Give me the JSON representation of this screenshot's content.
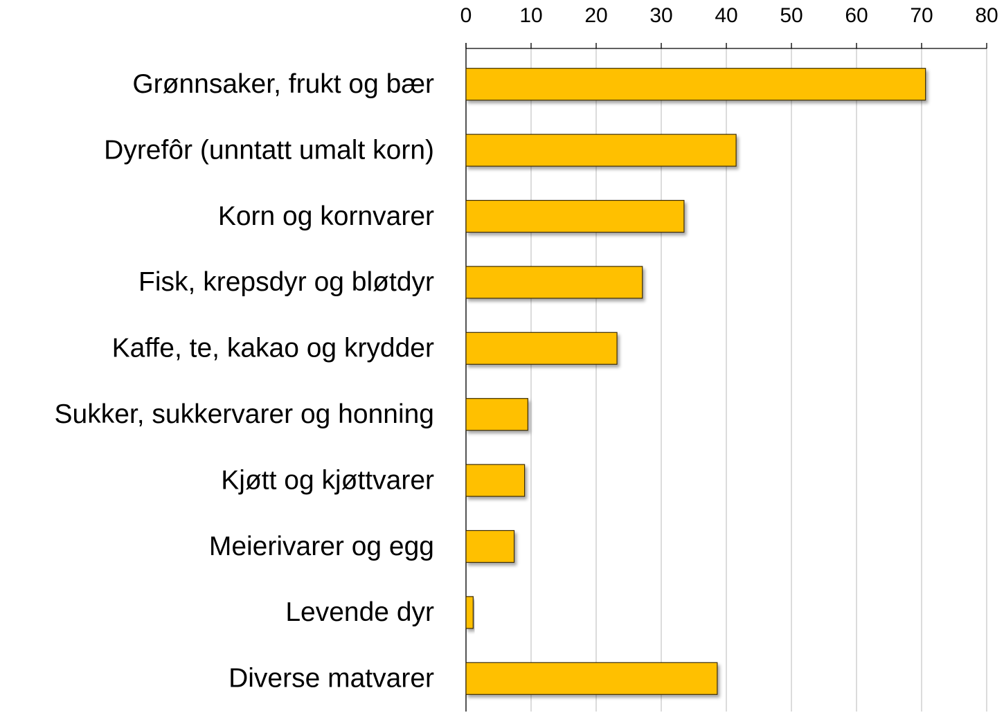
{
  "chart_data": {
    "type": "bar",
    "orientation": "horizontal",
    "categories": [
      "Grønnsaker, frukt og bær",
      "Dyrefôr (unntatt umalt korn)",
      "Korn og kornvarer",
      "Fisk, krepsdyr og bløtdyr",
      "Kaffe, te, kakao og krydder",
      "Sukker, sukkervarer og honning",
      "Kjøtt og kjøttvarer",
      "Meierivarer og egg",
      "Levende dyr",
      "Diverse matvarer"
    ],
    "values": [
      70.6,
      41.5,
      33.5,
      27.1,
      23.2,
      9.5,
      9.0,
      7.4,
      1.1,
      38.6
    ],
    "color": "#ffc000",
    "xlim": [
      0,
      80
    ],
    "xticks": [
      0,
      10,
      20,
      30,
      40,
      50,
      60,
      70,
      80
    ],
    "grid": true
  }
}
